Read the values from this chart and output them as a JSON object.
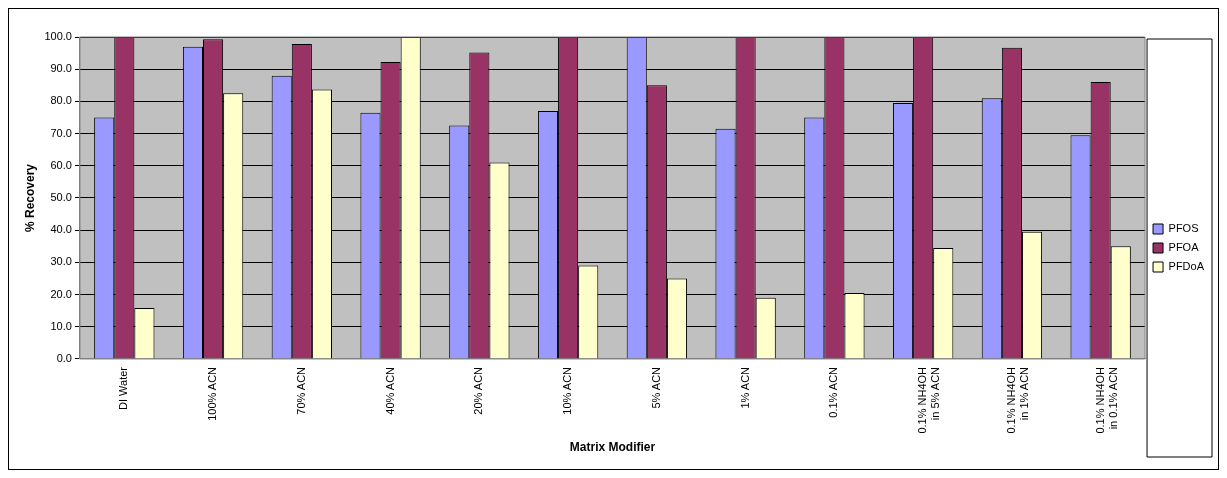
{
  "chart_data": {
    "type": "bar",
    "xlabel": "Matrix Modifier",
    "ylabel": "% Recovery",
    "categories": [
      "DI Water",
      "100% ACN",
      "70% ACN",
      "40% ACN",
      "20% ACN",
      "10% ACN",
      "5% ACN",
      "1% ACN",
      "0.1% ACN",
      "0.1% NH4OH\nin 5% ACN",
      "0.1% NH4OH\nin 1% ACN",
      "0.1% NH4OH\nin 0.1% ACN"
    ],
    "series": [
      {
        "name": "PFOS",
        "color": "#9999ff",
        "values": [
          75,
          97,
          88,
          76.5,
          72.5,
          77,
          100,
          71.5,
          75,
          79.5,
          81,
          69.5
        ]
      },
      {
        "name": "PFOA",
        "color": "#993366",
        "values": [
          100,
          99.3,
          97.8,
          92.2,
          95.2,
          100,
          85,
          100,
          100,
          100,
          96.7,
          86
        ]
      },
      {
        "name": "PFDoA",
        "color": "#ffffcc",
        "values": [
          15.8,
          82.5,
          83.7,
          100,
          61,
          29,
          25,
          19,
          20.5,
          34.5,
          39.5,
          35
        ]
      }
    ],
    "ylim": [
      0,
      100
    ],
    "yticks": [
      {
        "value": 0,
        "label": "0.0"
      },
      {
        "value": 10,
        "label": "10.0"
      },
      {
        "value": 20,
        "label": "20.0"
      },
      {
        "value": 30,
        "label": "30.0"
      },
      {
        "value": 40,
        "label": "40.0"
      },
      {
        "value": 50,
        "label": "50.0"
      },
      {
        "value": 60,
        "label": "60.0"
      },
      {
        "value": 70,
        "label": "70.0"
      },
      {
        "value": 80,
        "label": "80.0"
      },
      {
        "value": 90,
        "label": "90.0"
      },
      {
        "value": 100,
        "label": "100.0"
      }
    ],
    "grid": "y",
    "legend": "right"
  }
}
